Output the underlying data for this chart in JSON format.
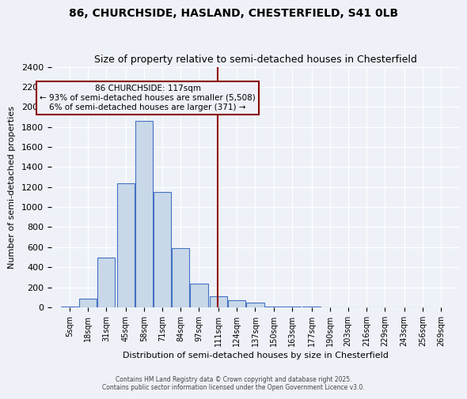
{
  "title1": "86, CHURCHSIDE, HASLAND, CHESTERFIELD, S41 0LB",
  "title2": "Size of property relative to semi-detached houses in Chesterfield",
  "xlabel": "Distribution of semi-detached houses by size in Chesterfield",
  "ylabel": "Number of semi-detached properties",
  "bin_labels": [
    "5sqm",
    "18sqm",
    "31sqm",
    "45sqm",
    "58sqm",
    "71sqm",
    "84sqm",
    "97sqm",
    "111sqm",
    "124sqm",
    "137sqm",
    "150sqm",
    "163sqm",
    "177sqm",
    "190sqm",
    "203sqm",
    "216sqm",
    "229sqm",
    "243sqm",
    "256sqm",
    "269sqm"
  ],
  "bin_edges": [
    5,
    18,
    31,
    45,
    58,
    71,
    84,
    97,
    111,
    124,
    137,
    150,
    163,
    177,
    190,
    203,
    216,
    229,
    243,
    256,
    269
  ],
  "bar_heights": [
    10,
    90,
    500,
    1240,
    1860,
    1150,
    590,
    240,
    110,
    70,
    45,
    10,
    10,
    5,
    0,
    0,
    0,
    0,
    0,
    0
  ],
  "bar_color": "#c8d8e8",
  "bar_edge_color": "#4472c4",
  "property_value": 117,
  "vline_color": "#8b0000",
  "annotation_text": "86 CHURCHSIDE: 117sqm\n← 93% of semi-detached houses are smaller (5,508)\n6% of semi-detached houses are larger (371) →",
  "annotation_box_color": "#8b0000",
  "background_color": "#eef2f8",
  "grid_color": "#ffffff",
  "ylim": [
    0,
    2400
  ],
  "yticks": [
    0,
    200,
    400,
    600,
    800,
    1000,
    1200,
    1400,
    1600,
    1800,
    2000,
    2200,
    2400
  ],
  "footer1": "Contains HM Land Registry data © Crown copyright and database right 2025.",
  "footer2": "Contains public sector information licensed under the Open Government Licence v3.0."
}
